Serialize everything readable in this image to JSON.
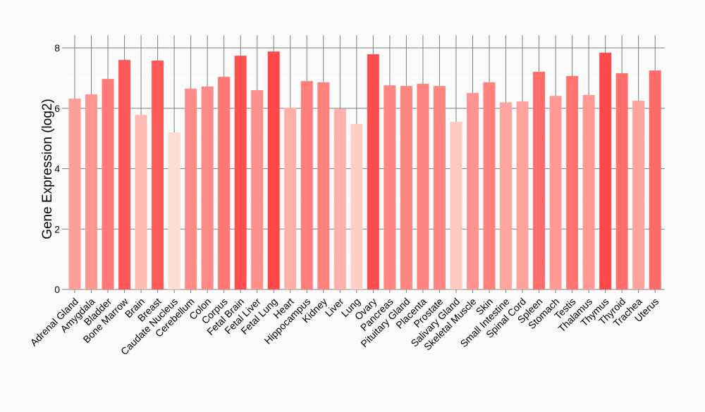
{
  "chart_data": {
    "type": "bar",
    "title": "",
    "xlabel": "",
    "ylabel": "Gene Expression (log2)",
    "ylim": [
      0,
      8
    ],
    "yticks": [
      "0",
      "2",
      "4",
      "6",
      "8"
    ],
    "grid": true,
    "categories": [
      "Adrenal Gland",
      "Amygdala",
      "Bladder",
      "Bone Marrow",
      "Brain",
      "Breast",
      "Caudate Nucleus",
      "Cerebellum",
      "Colon",
      "Corpus",
      "Fetal Brain",
      "Fetal Liver",
      "Fetal Lung",
      "Heart",
      "Hippocampus",
      "Kidney",
      "Liver",
      "Lung",
      "Ovary",
      "Pancreas",
      "Pituitary Gland",
      "Placenta",
      "Prostate",
      "Salivary Gland",
      "Skeletal Muscle",
      "Skin",
      "Small Intestine",
      "Spinal Cord",
      "Spleen",
      "Stomach",
      "Testis",
      "Thalamus",
      "Thymus",
      "Thyroid",
      "Trachea",
      "Uterus"
    ],
    "values": [
      6.32,
      6.46,
      6.97,
      7.6,
      5.78,
      7.58,
      5.2,
      6.65,
      6.72,
      7.04,
      7.74,
      6.6,
      7.88,
      6.02,
      6.9,
      6.86,
      5.99,
      5.48,
      7.79,
      6.76,
      6.74,
      6.81,
      6.74,
      5.55,
      6.51,
      6.86,
      6.2,
      6.23,
      7.21,
      6.41,
      7.07,
      6.44,
      7.84,
      7.16,
      6.25,
      7.25
    ],
    "color_low": "#fedcd2",
    "color_high": "#ff4848"
  }
}
